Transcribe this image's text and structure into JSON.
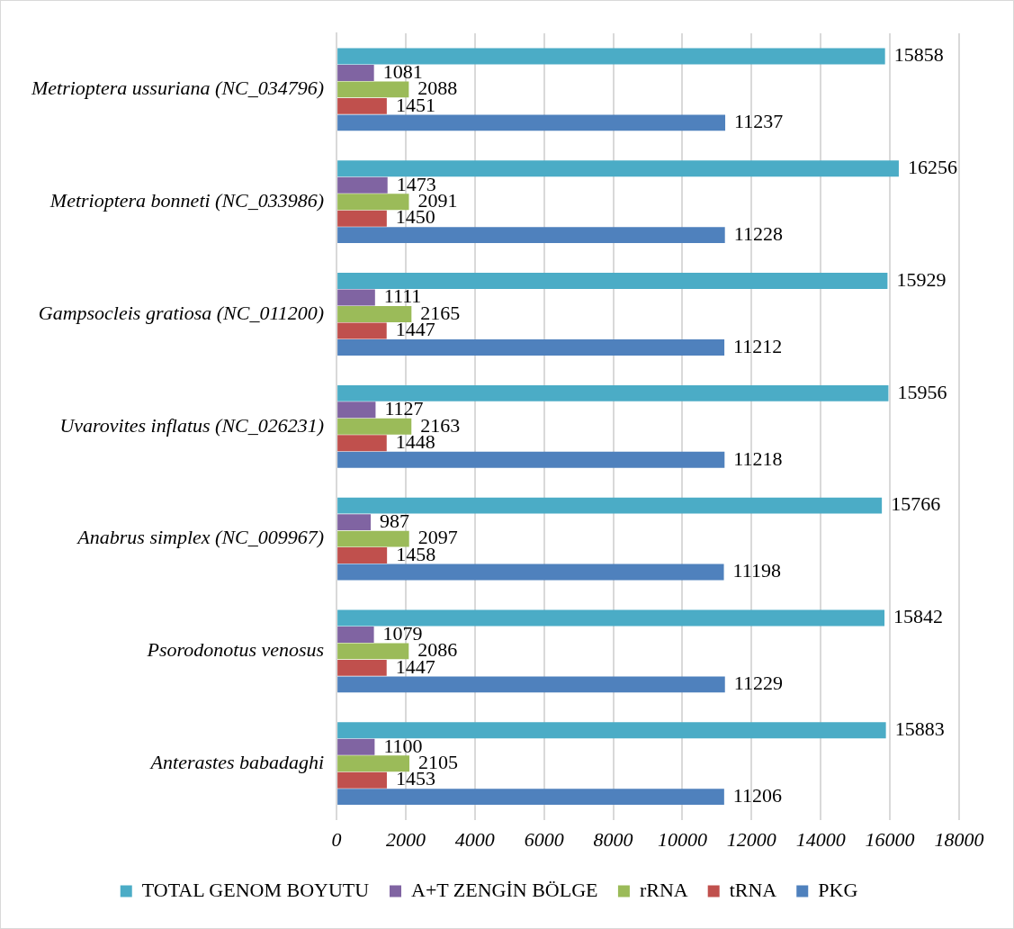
{
  "chart_data": {
    "type": "bar",
    "orientation": "horizontal",
    "categories": [
      "Metrioptera ussuriana (NC_034796)",
      "Metrioptera bonneti (NC_033986)",
      "Gampsocleis gratiosa (NC_011200)",
      "Uvarovites inflatus (NC_026231)",
      "Anabrus simplex (NC_009967)",
      "Psorodonotus venosus",
      "Anterastes babadaghi"
    ],
    "series": [
      {
        "name": "TOTAL GENOM BOYUTU",
        "color": "#4bacc6",
        "values": [
          15858,
          16256,
          15929,
          15956,
          15766,
          15842,
          15883
        ]
      },
      {
        "name": "A+T ZENGİN BÖLGE",
        "color": "#8064a2",
        "values": [
          1081,
          1473,
          1111,
          1127,
          987,
          1079,
          1100
        ]
      },
      {
        "name": "rRNA",
        "color": "#9bbb59",
        "values": [
          2088,
          2091,
          2165,
          2163,
          2097,
          2086,
          2105
        ]
      },
      {
        "name": "tRNA",
        "color": "#c0504d",
        "values": [
          1451,
          1450,
          1447,
          1448,
          1458,
          1447,
          1453
        ]
      },
      {
        "name": "PKG",
        "color": "#4f81bd",
        "values": [
          11237,
          11228,
          11212,
          11218,
          11198,
          11229,
          11206
        ]
      }
    ],
    "xlim": [
      0,
      18000
    ],
    "xticks": [
      0,
      2000,
      4000,
      6000,
      8000,
      10000,
      12000,
      14000,
      16000,
      18000
    ],
    "grid": "x",
    "legend": "bottom",
    "data_labels": true
  }
}
